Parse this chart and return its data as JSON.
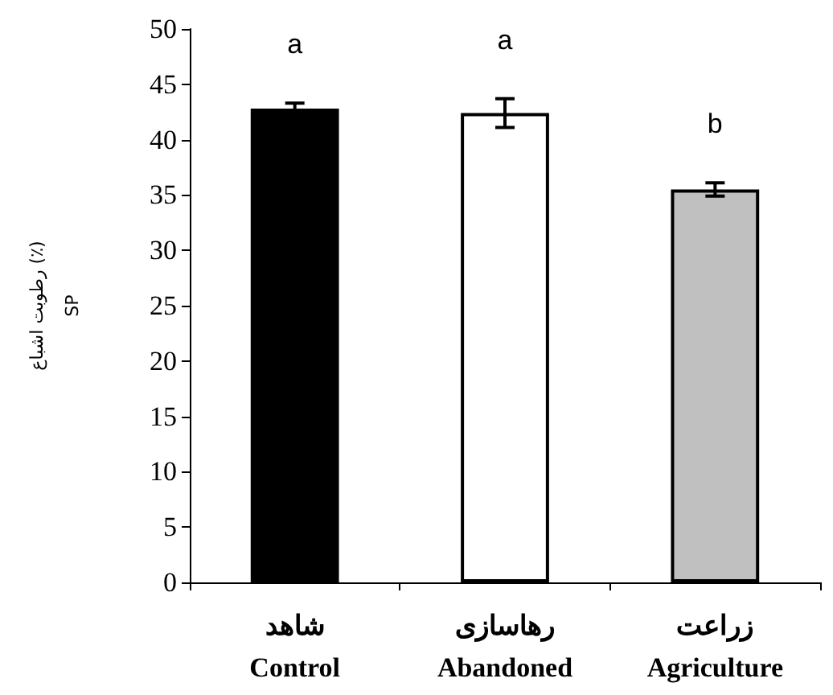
{
  "chart_data": {
    "type": "bar",
    "ylabel": "رطوبت اشباع (٪)\nSP",
    "categories": [
      "شاهد\nControl",
      "رهاسازی\nAbandoned",
      "زراعت\nAgriculture"
    ],
    "values": [
      42.8,
      42.4,
      35.5
    ],
    "colors": [
      "#000000",
      "#ffffff",
      "#c0c0c0"
    ],
    "errors": [
      0.5,
      1.3,
      0.6
    ],
    "ylim": [
      0,
      50
    ],
    "yticks": [
      0,
      5,
      10,
      15,
      20,
      25,
      30,
      35,
      40,
      45,
      50
    ],
    "grid": false,
    "annotations": [
      "a",
      "a",
      "b"
    ]
  }
}
